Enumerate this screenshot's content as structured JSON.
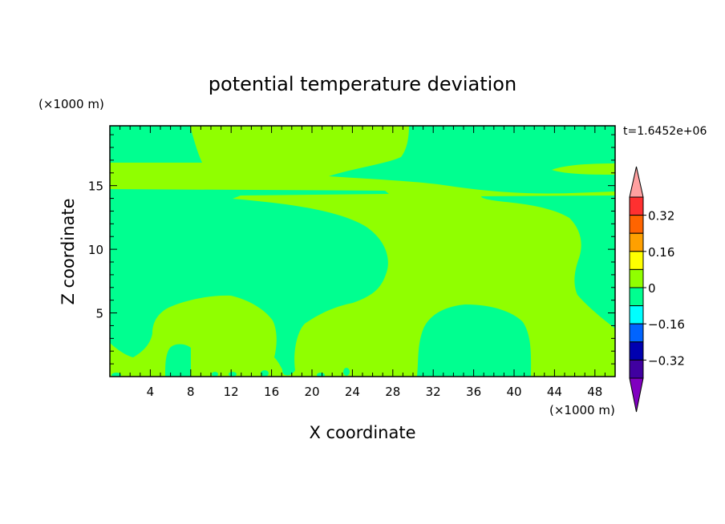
{
  "chart_data": {
    "type": "heatmap",
    "title": "potential temperature deviation",
    "xlabel": "X coordinate",
    "ylabel": "Z coordinate",
    "x_unit": "(×1000 m)",
    "y_unit": "(×1000 m)",
    "time_label": "t=1.6452e+06",
    "xlim": [
      0,
      50
    ],
    "ylim": [
      0,
      19.7
    ],
    "x_ticks": [
      4,
      8,
      12,
      16,
      20,
      24,
      28,
      32,
      36,
      40,
      44,
      48
    ],
    "y_ticks": [
      5,
      10,
      15
    ],
    "colorbar": {
      "ticks": [
        "0.32",
        "0.16",
        "0",
        "−0.16",
        "−0.32"
      ],
      "levels": [
        "#ffa0a0",
        "#ff3030",
        "#ff6400",
        "#ffa000",
        "#ffff00",
        "#90ff00",
        "#00ff90",
        "#00ffff",
        "#0064ff",
        "#0000b0",
        "#4000a0",
        "#8000c0"
      ]
    },
    "regions": [
      {
        "level": "0",
        "color": "#90ff00",
        "description": "field between 0 and 0.08"
      },
      {
        "level": "-0.08",
        "color": "#00ff90",
        "description": "field between -0.08 and 0"
      }
    ]
  }
}
